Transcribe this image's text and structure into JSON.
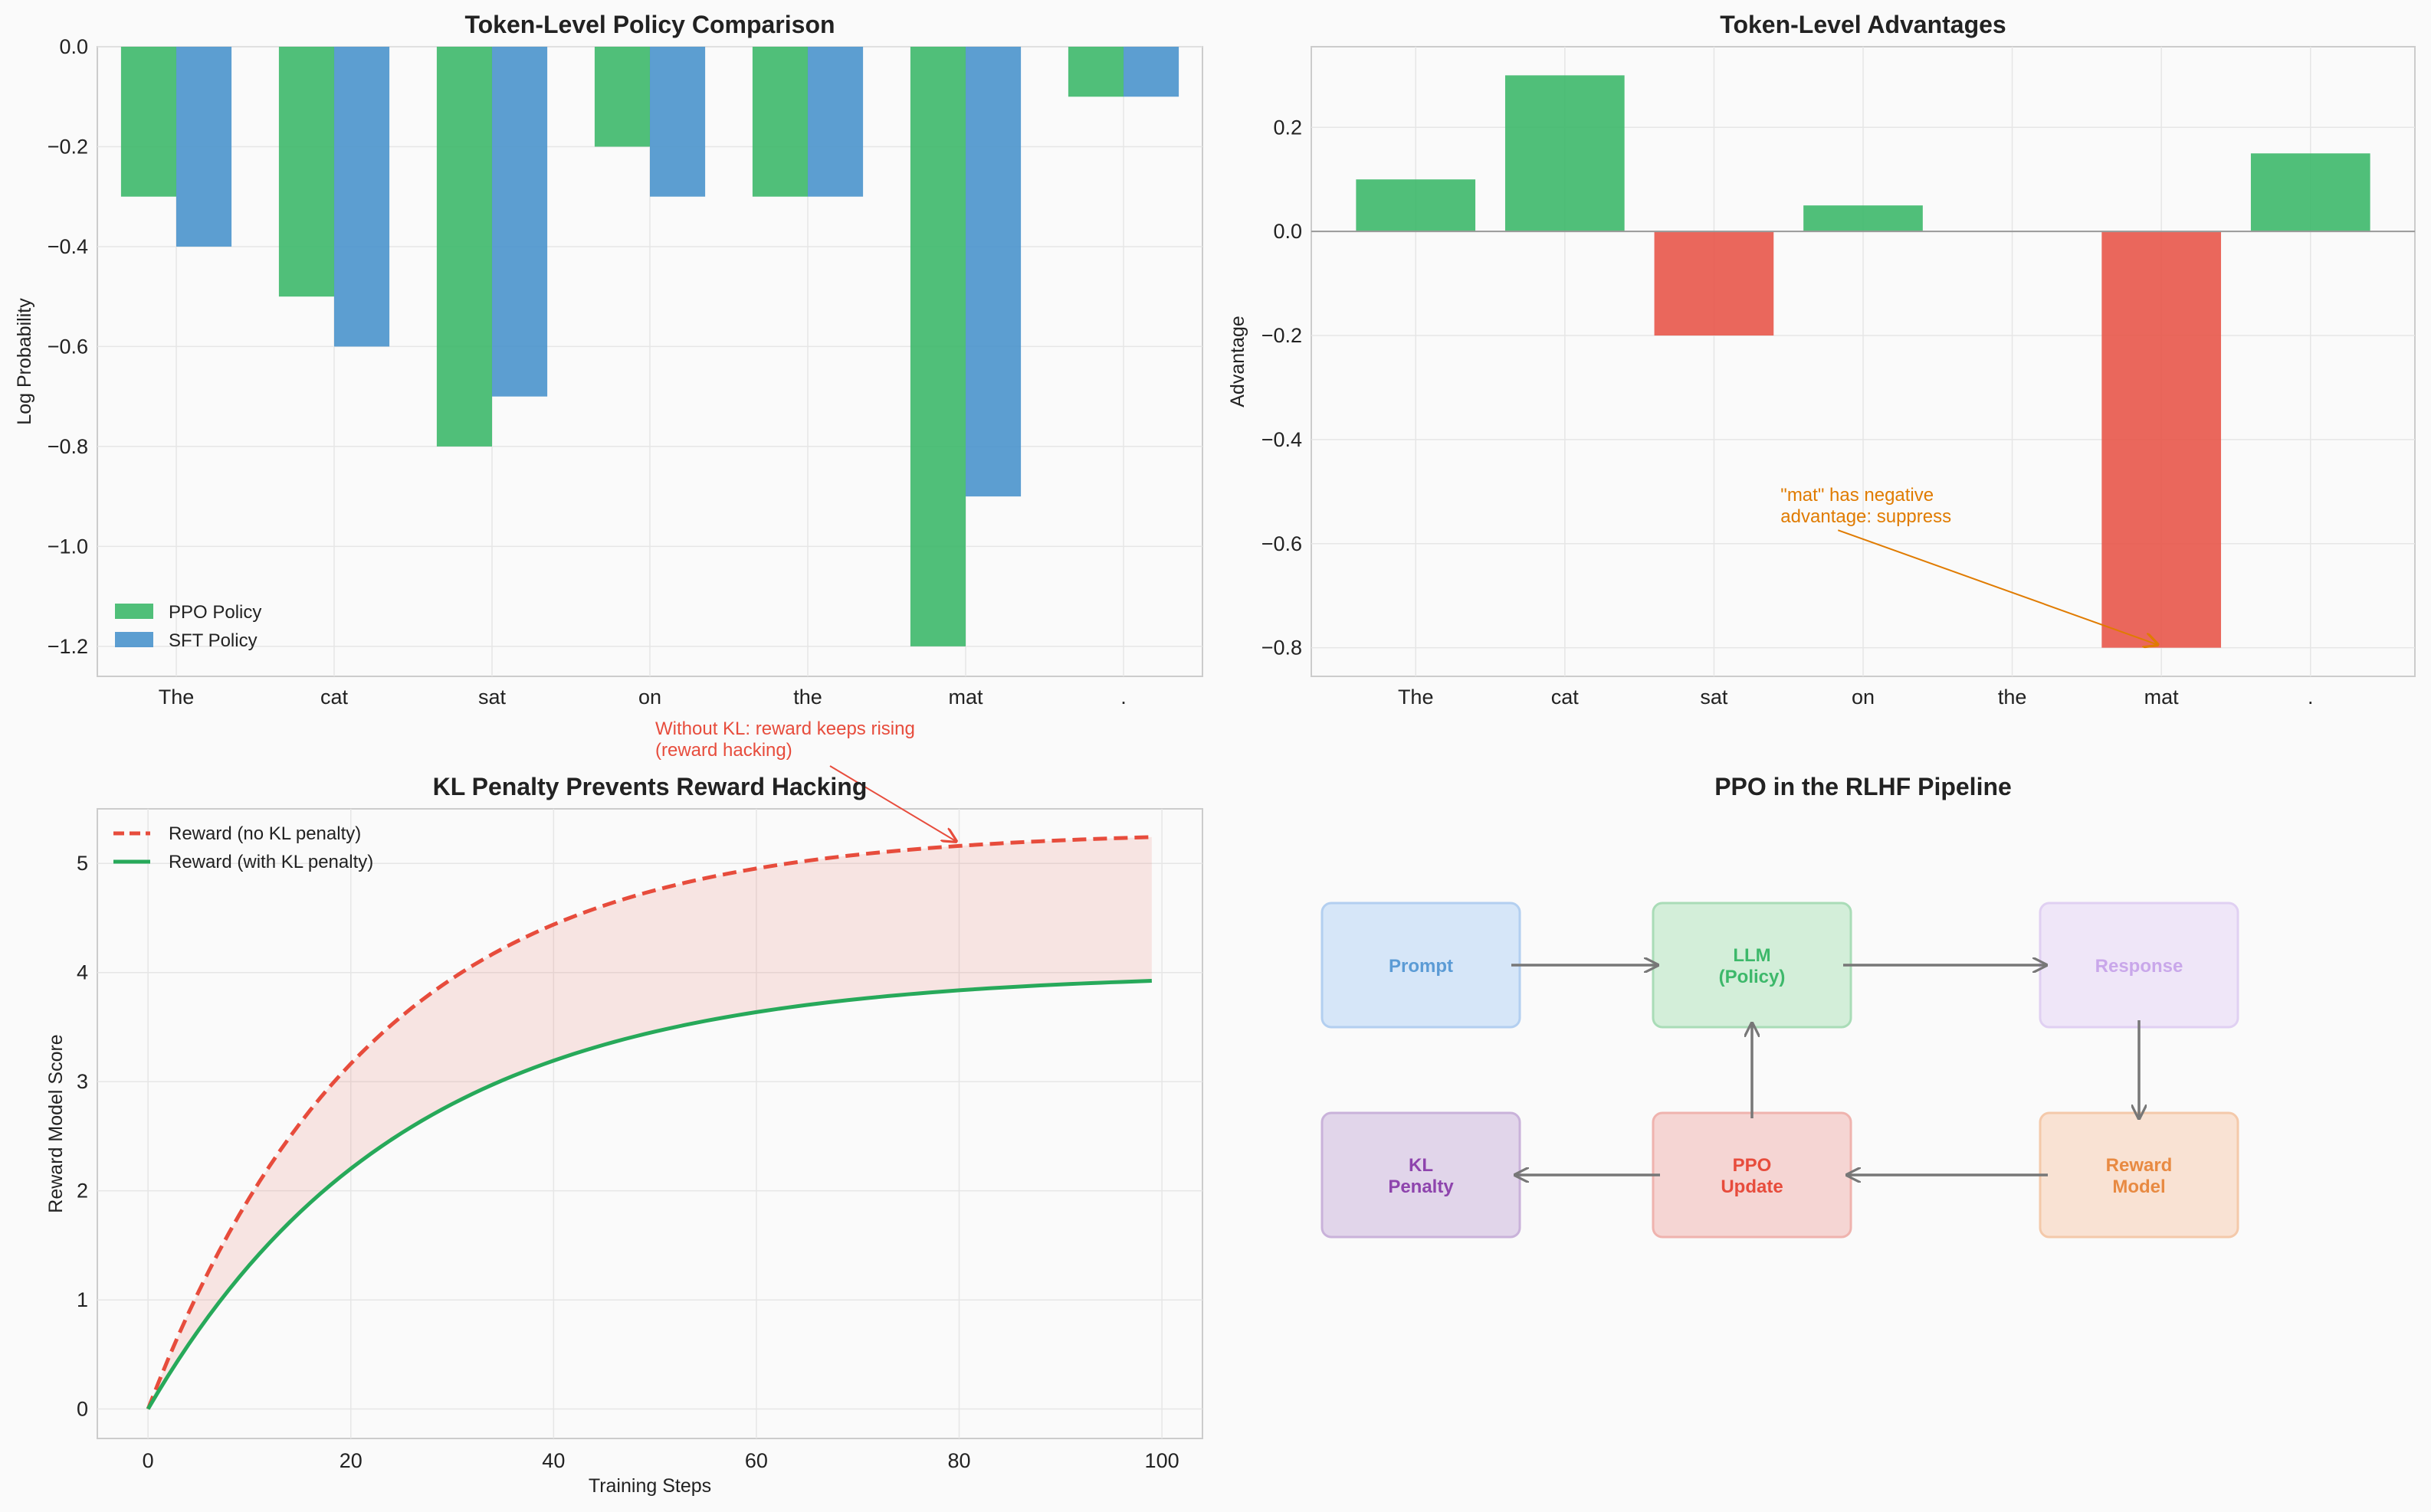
{
  "chart_data": [
    {
      "type": "bar",
      "title": "Token-Level Policy Comparison",
      "xlabel": "",
      "ylabel": "Log Probability",
      "categories": [
        "The",
        "cat",
        "sat",
        "on",
        "the",
        "mat",
        "."
      ],
      "series": [
        {
          "name": "PPO Policy",
          "color": "#3db86a",
          "values": [
            -0.3,
            -0.5,
            -0.8,
            -0.2,
            -0.3,
            -1.2,
            -0.1
          ]
        },
        {
          "name": "SFT Policy",
          "color": "#4a94cc",
          "values": [
            -0.4,
            -0.6,
            -0.7,
            -0.3,
            -0.3,
            -0.9,
            -0.1
          ]
        }
      ],
      "ylim": [
        -1.26,
        0.0
      ],
      "yticks": [
        0.0,
        -0.2,
        -0.4,
        -0.6,
        -0.8,
        -1.0,
        -1.2
      ],
      "ytick_labels": [
        "0.0",
        "−0.2",
        "−0.4",
        "−0.6",
        "−0.8",
        "−1.0",
        "−1.2"
      ],
      "legend_position": "lower-left",
      "grid": true
    },
    {
      "type": "bar",
      "title": "Token-Level Advantages",
      "xlabel": "",
      "ylabel": "Advantage",
      "categories": [
        "The",
        "cat",
        "sat",
        "on",
        "the",
        "mat",
        "."
      ],
      "values": [
        0.1,
        0.3,
        -0.2,
        0.05,
        0.0,
        -0.8,
        0.15
      ],
      "positive_color": "#3db86a",
      "negative_color": "#e8574a",
      "ylim": [
        -0.855,
        0.355
      ],
      "yticks": [
        0.2,
        0.0,
        -0.2,
        -0.4,
        -0.6,
        -0.8
      ],
      "ytick_labels": [
        "0.2",
        "0.0",
        "−0.2",
        "−0.4",
        "−0.6",
        "−0.8"
      ],
      "annotation": {
        "lines": [
          "\"mat\" has negative",
          "advantage: suppress"
        ],
        "target_category": "mat",
        "target_value": -0.8,
        "text_anchor": [
          3.5,
          -0.58
        ],
        "color": "#e07b00"
      },
      "grid": true
    },
    {
      "type": "line",
      "title": "KL Penalty Prevents Reward Hacking",
      "xlabel": "Training Steps",
      "ylabel": "Reward Model Score",
      "series": [
        {
          "name": "Reward (no KL penalty)",
          "color": "#e74c3c",
          "style": "dashed",
          "function": "5.3*(1-exp(-x/22))"
        },
        {
          "name": "Reward (with KL penalty)",
          "color": "#27a95a",
          "style": "solid",
          "function": "4.0*(1-exp(-x/25))"
        }
      ],
      "x_range": [
        0,
        99
      ],
      "xlim": [
        -5,
        104
      ],
      "ylim": [
        -0.27,
        5.5
      ],
      "xticks": [
        0,
        20,
        40,
        60,
        80,
        100
      ],
      "xtick_labels": [
        "0",
        "20",
        "40",
        "60",
        "80",
        "100"
      ],
      "yticks": [
        0,
        1,
        2,
        3,
        4,
        5
      ],
      "ytick_labels": [
        "0",
        "1",
        "2",
        "3",
        "4",
        "5"
      ],
      "fill_between": true,
      "annotation": {
        "lines": [
          "Without KL: reward keeps rising",
          "(reward hacking)"
        ],
        "target": [
          80,
          5.15
        ],
        "text_anchor": [
          50,
          6.3
        ],
        "color": "#e74c3c"
      },
      "legend_position": "upper-left",
      "grid": true
    },
    {
      "type": "diagram",
      "title": "PPO in the RLHF Pipeline",
      "nodes": [
        {
          "id": "prompt",
          "lines": [
            "Prompt"
          ],
          "fill": "#d6e6f8",
          "stroke": "#b3cff0",
          "text": "#5b9bd5"
        },
        {
          "id": "llm",
          "lines": [
            "LLM",
            "(Policy)"
          ],
          "fill": "#d3eed9",
          "stroke": "#a9dcb7",
          "text": "#3db86a"
        },
        {
          "id": "response",
          "lines": [
            "Response"
          ],
          "fill": "#efe6f8",
          "stroke": "#e0d0f2",
          "text": "#c9a7ea"
        },
        {
          "id": "kl",
          "lines": [
            "KL",
            "Penalty"
          ],
          "fill": "#e1d5ea",
          "stroke": "#c9b2da",
          "text": "#8e44ad"
        },
        {
          "id": "ppo",
          "lines": [
            "PPO",
            "Update"
          ],
          "fill": "#f5d5d3",
          "stroke": "#efb3ae",
          "text": "#e74c3c"
        },
        {
          "id": "reward",
          "lines": [
            "Reward",
            "Model"
          ],
          "fill": "#f9e2d3",
          "stroke": "#f4c9aa",
          "text": "#e88a42"
        }
      ],
      "edges": [
        {
          "from": "prompt",
          "to": "llm"
        },
        {
          "from": "llm",
          "to": "response"
        },
        {
          "from": "response",
          "to": "reward"
        },
        {
          "from": "reward",
          "to": "ppo"
        },
        {
          "from": "ppo",
          "to": "kl"
        },
        {
          "from": "ppo",
          "to": "llm"
        }
      ]
    }
  ]
}
